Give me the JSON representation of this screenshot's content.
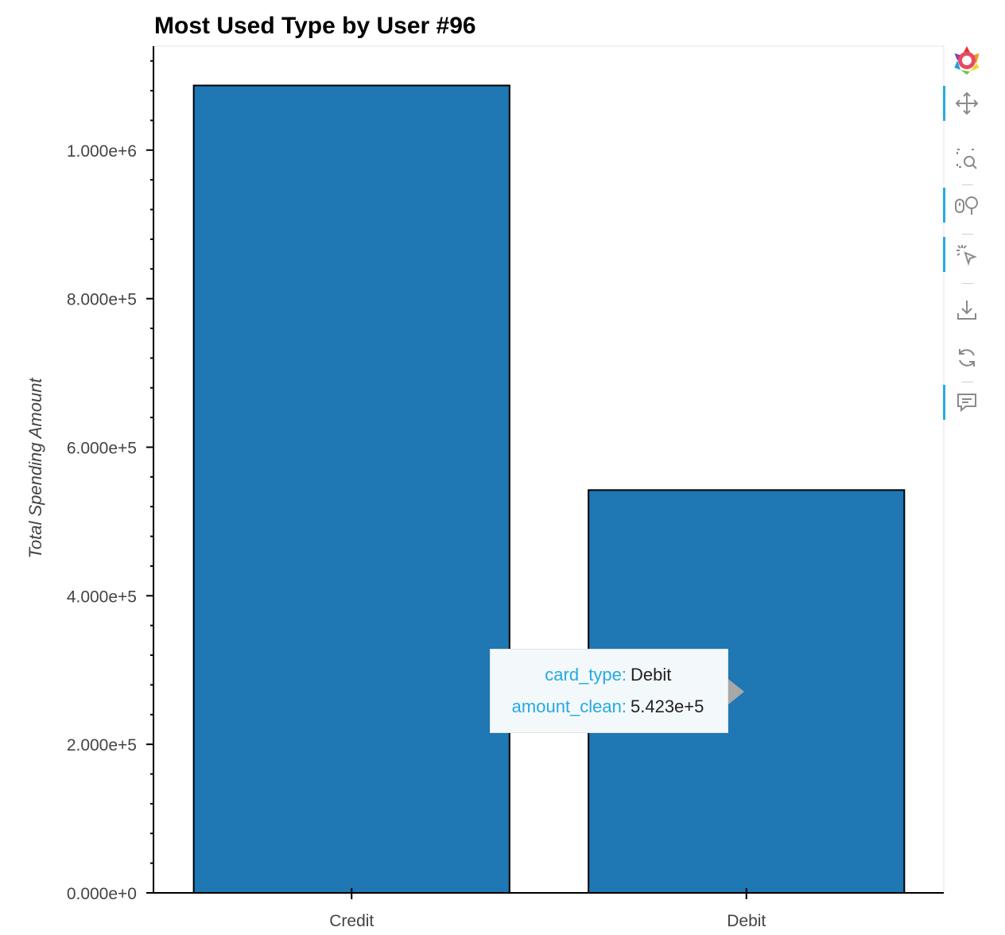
{
  "chart_data": {
    "type": "bar",
    "title": "Most Used Type by User #96",
    "xlabel": "",
    "ylabel": "Total Spending Amount",
    "categories": [
      "Credit",
      "Debit"
    ],
    "values": [
      1087000,
      542300
    ],
    "ylim": [
      0,
      1140000
    ],
    "yticks": [
      {
        "value": 0,
        "label": "0.000e+0"
      },
      {
        "value": 200000,
        "label": "2.000e+5"
      },
      {
        "value": 400000,
        "label": "4.000e+5"
      },
      {
        "value": 600000,
        "label": "6.000e+5"
      },
      {
        "value": 800000,
        "label": "8.000e+5"
      },
      {
        "value": 1000000,
        "label": "1.000e+6"
      }
    ],
    "bar_color": "#1f77b4",
    "grid": false
  },
  "tooltip": {
    "rows": [
      {
        "key": "card_type:",
        "value": "Debit"
      },
      {
        "key": "amount_clean:",
        "value": "5.423e+5"
      }
    ]
  },
  "toolbar": {
    "tools": [
      {
        "name": "bokeh-logo-icon"
      },
      {
        "name": "pan-icon"
      },
      {
        "name": "box-zoom-icon"
      },
      {
        "name": "wheel-zoom-icon"
      },
      {
        "name": "tap-icon"
      },
      {
        "name": "save-icon"
      },
      {
        "name": "reset-icon"
      },
      {
        "name": "hover-icon"
      }
    ]
  }
}
